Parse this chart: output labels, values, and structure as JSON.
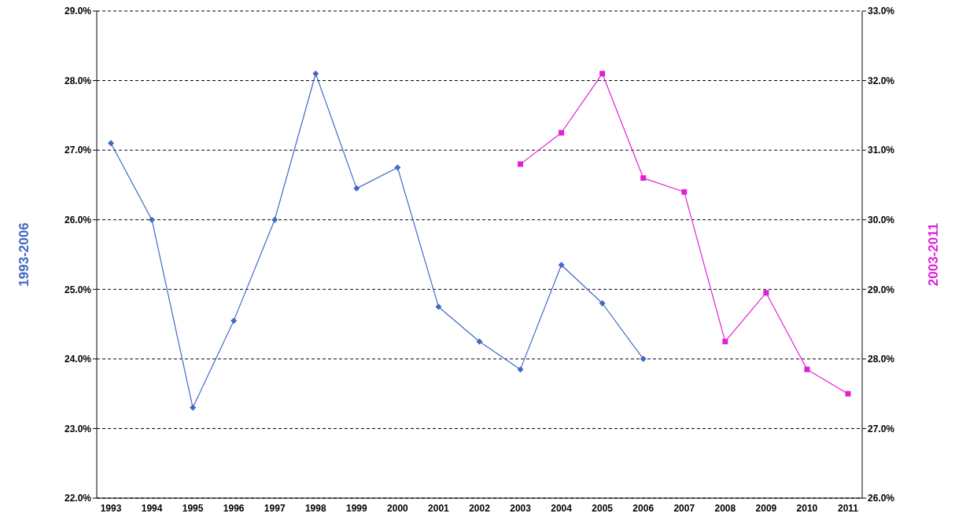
{
  "chart_data": {
    "type": "line",
    "ylabel": "1993-2006",
    "y2label": "2003-2011",
    "categories": [
      "1993",
      "1994",
      "1995",
      "1996",
      "1997",
      "1998",
      "1999",
      "2000",
      "2001",
      "2002",
      "2003",
      "2004",
      "2005",
      "2006",
      "2007",
      "2008",
      "2009",
      "2010",
      "2011"
    ],
    "series": [
      {
        "color": "#4169c4",
        "marker": "diamond",
        "values": [
          27.1,
          26.0,
          23.3,
          24.55,
          26.0,
          28.1,
          26.45,
          26.75,
          24.75,
          24.25,
          23.85,
          25.35,
          24.8,
          24.0,
          null,
          null,
          null,
          null,
          null
        ]
      },
      {
        "color": "#e020d8",
        "marker": "square",
        "axis": "y2",
        "values": [
          null,
          null,
          null,
          null,
          null,
          null,
          null,
          null,
          null,
          null,
          30.8,
          31.25,
          32.1,
          30.6,
          30.4,
          28.25,
          28.95,
          27.85,
          27.5
        ]
      }
    ],
    "ylim": [
      22,
      29
    ],
    "yticks": [
      {
        "value": 22,
        "label": "22.0%"
      },
      {
        "value": 23,
        "label": "23.0%"
      },
      {
        "value": 24,
        "label": "24.0%"
      },
      {
        "value": 25,
        "label": "25.0%"
      },
      {
        "value": 26,
        "label": "26.0%"
      },
      {
        "value": 27,
        "label": "27.0%"
      },
      {
        "value": 28,
        "label": "28.0%"
      },
      {
        "value": 29,
        "label": "29.0%"
      }
    ],
    "y2lim": [
      26,
      33
    ],
    "y2ticks": [
      {
        "value": 26,
        "label": "26.0%"
      },
      {
        "value": 27,
        "label": "27.0%"
      },
      {
        "value": 28,
        "label": "28.0%"
      },
      {
        "value": 29,
        "label": "29.0%"
      },
      {
        "value": 30,
        "label": "30.0%"
      },
      {
        "value": 31,
        "label": "31.0%"
      },
      {
        "value": 32,
        "label": "32.0%"
      },
      {
        "value": 33,
        "label": "33.0%"
      }
    ],
    "grid": "y",
    "line_style": "solid",
    "legend": false
  }
}
